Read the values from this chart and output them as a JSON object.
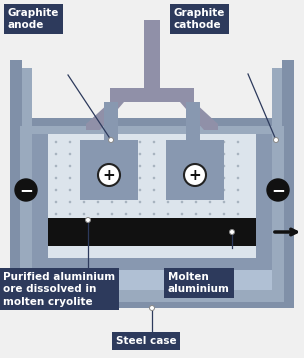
{
  "bg_color": "#f0f0f0",
  "outer_steel_color": "#8090a8",
  "mid_steel_color": "#9aaabe",
  "inner_lining_color": "#b0c0d4",
  "cathode_wall_color": "#8898b0",
  "electrolyte_color": "#dce4ec",
  "dot_color": "#a8b4c0",
  "anode_block_color": "#8898b0",
  "molten_al_color": "#111111",
  "arch_color": "#9090a8",
  "rod_color": "#9090a8",
  "label_bg": "#2d3a5c",
  "label_fg": "#ffffff",
  "connector_color": "#2d3a5c",
  "minus_bg": "#111111",
  "minus_fg": "#ffffff",
  "plus_bg": "#ffffff",
  "plus_fg": "#111111",
  "arrow_color": "#111111",
  "title_anode": "Graphite\nanode",
  "title_cathode": "Graphite\ncathode",
  "title_purified": "Purified aluminium\nore dissolved in\nmolten cryolite",
  "title_molten": "Molten\naluminium",
  "title_steel": "Steel case",
  "figsize": [
    3.04,
    3.58
  ],
  "dpi": 100
}
